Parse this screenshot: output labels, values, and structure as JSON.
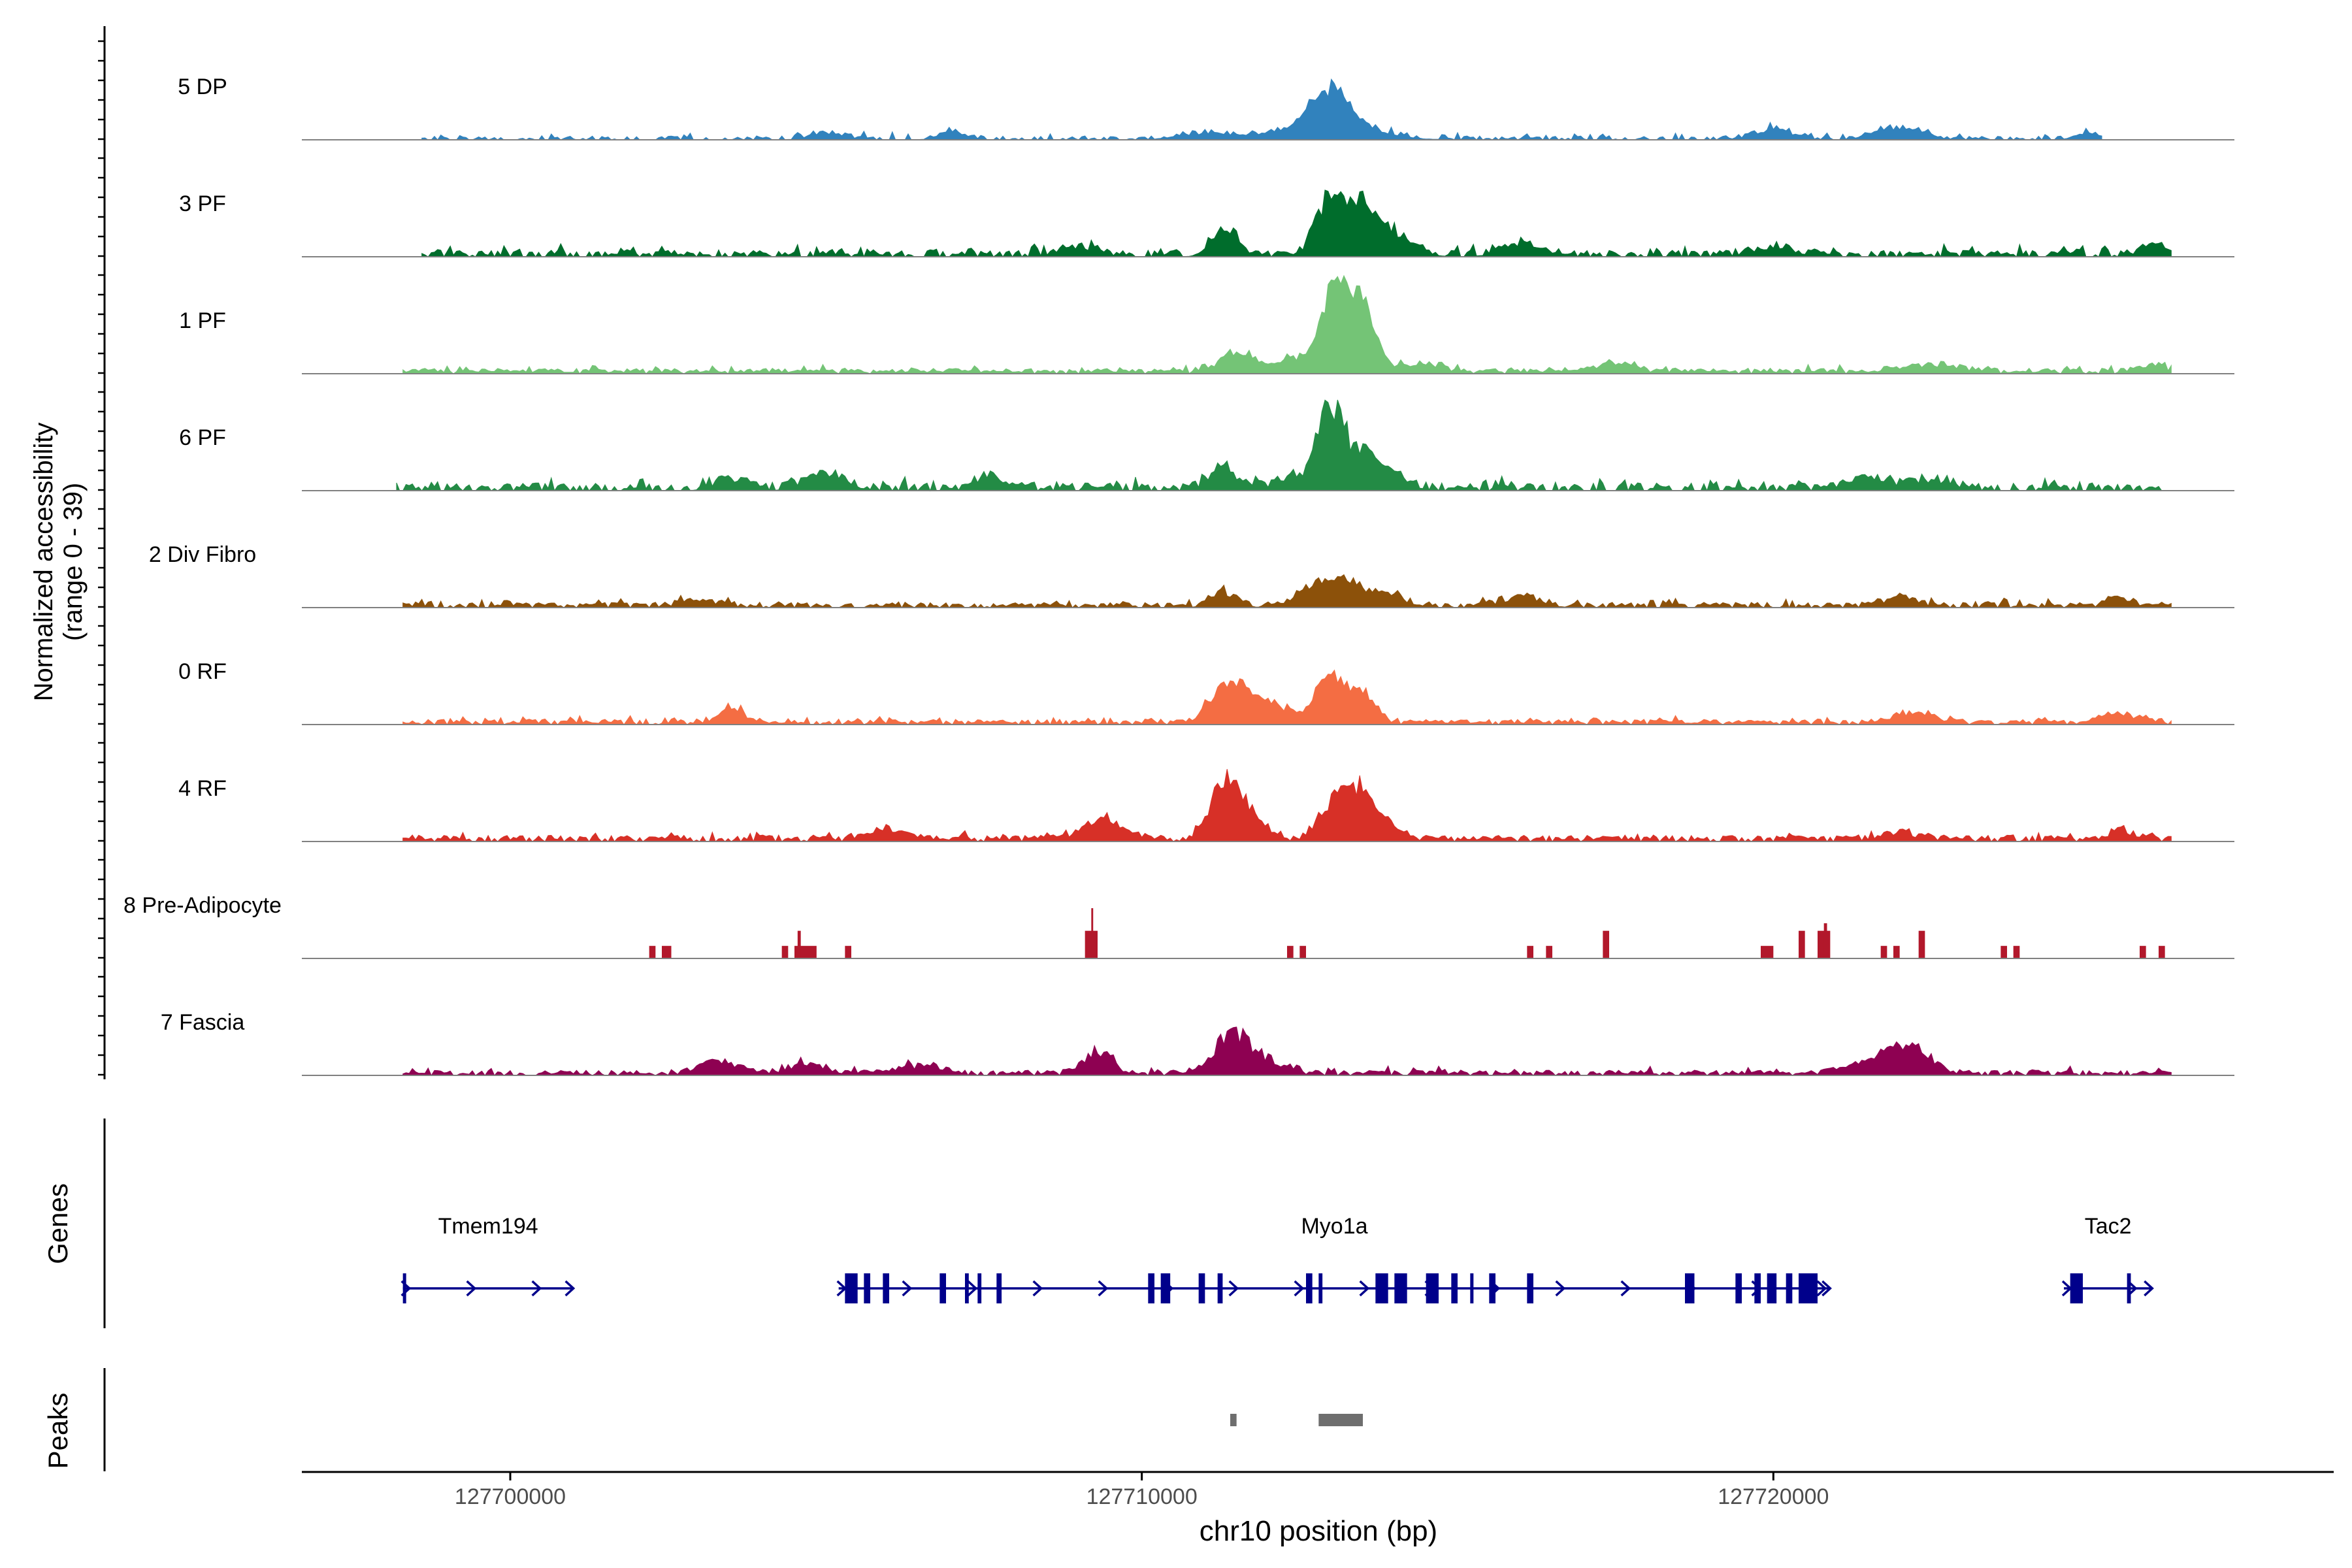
{
  "chart_data": {
    "type": "area",
    "chromosome": "chr10",
    "xlabel": "chr10 position (bp)",
    "xlim": [
      127696700,
      127727300
    ],
    "x_ticks": [
      127700000,
      127710000,
      127720000
    ],
    "x_tick_labels": [
      "127700000",
      "127710000",
      "127720000"
    ],
    "ylabel": "Normalized accessibility",
    "ylabel_sub": "(range 0 - 39)",
    "ylim": [
      0,
      39
    ],
    "series": [
      {
        "name": "5 DP",
        "color": "#3182bd",
        "start": 127698600,
        "end": 127725200,
        "base": 1.2,
        "noise": 2.2,
        "density": 0.55,
        "seed": 11,
        "peaks": [
          [
            127713000,
            14,
            330
          ],
          [
            127712900,
            6,
            700
          ],
          [
            127705000,
            3,
            250
          ],
          [
            127707000,
            3.5,
            200
          ],
          [
            127720000,
            4,
            300
          ],
          [
            127722000,
            5,
            350
          ],
          [
            127725000,
            3,
            200
          ],
          [
            127711000,
            2.5,
            400
          ]
        ]
      },
      {
        "name": "3 PF",
        "color": "#006d2c",
        "start": 127698600,
        "end": 127726300,
        "base": 2.0,
        "noise": 2.8,
        "density": 0.7,
        "seed": 23,
        "peaks": [
          [
            127711300,
            11,
            200
          ],
          [
            127713000,
            24,
            230
          ],
          [
            127713500,
            17,
            220
          ],
          [
            127714000,
            8,
            300
          ],
          [
            127716000,
            5,
            300
          ],
          [
            127720000,
            3.5,
            300
          ],
          [
            127726000,
            4,
            200
          ],
          [
            127709000,
            3,
            300
          ]
        ]
      },
      {
        "name": "1 PF",
        "color": "#74c476",
        "start": 127698300,
        "end": 127726300,
        "base": 1.6,
        "noise": 1.8,
        "density": 0.95,
        "seed": 37,
        "peaks": [
          [
            127713050,
            24,
            200
          ],
          [
            127713450,
            27,
            220
          ],
          [
            127711500,
            8,
            250
          ],
          [
            127712800,
            7,
            500
          ],
          [
            127714500,
            3,
            300
          ],
          [
            127717500,
            3,
            300
          ],
          [
            127726000,
            3,
            200
          ],
          [
            127722500,
            3,
            400
          ]
        ]
      },
      {
        "name": "6 PF",
        "color": "#238b45",
        "start": 127698200,
        "end": 127726300,
        "base": 2.4,
        "noise": 3.0,
        "density": 0.72,
        "seed": 41,
        "peaks": [
          [
            127713000,
            29,
            200
          ],
          [
            127713500,
            12,
            250
          ],
          [
            127711300,
            9,
            200
          ],
          [
            127712600,
            5,
            400
          ],
          [
            127705000,
            6,
            300
          ],
          [
            127707600,
            5,
            200
          ],
          [
            127703500,
            4,
            250
          ],
          [
            127713900,
            4,
            300
          ],
          [
            127721500,
            5,
            300
          ],
          [
            127722500,
            4,
            300
          ]
        ]
      },
      {
        "name": "2 Div Fibro",
        "color": "#8c510a",
        "start": 127698300,
        "end": 127726300,
        "base": 1.6,
        "noise": 2.0,
        "density": 0.74,
        "seed": 53,
        "peaks": [
          [
            127711300,
            6,
            200
          ],
          [
            127712800,
            8,
            300
          ],
          [
            127713300,
            8,
            250
          ],
          [
            127713900,
            4,
            300
          ],
          [
            127716000,
            4,
            300
          ],
          [
            127722000,
            4,
            250
          ],
          [
            127725500,
            3,
            200
          ],
          [
            127703000,
            2.5,
            300
          ]
        ]
      },
      {
        "name": "0 RF",
        "color": "#f46d43",
        "start": 127698300,
        "end": 127726300,
        "base": 1.6,
        "noise": 1.8,
        "density": 0.85,
        "seed": 67,
        "peaks": [
          [
            127711400,
            15,
            280
          ],
          [
            127713000,
            20,
            200
          ],
          [
            127713500,
            11,
            200
          ],
          [
            127712200,
            4,
            300
          ],
          [
            127703500,
            5,
            220
          ],
          [
            127722200,
            4,
            300
          ],
          [
            127725500,
            3,
            300
          ],
          [
            127711900,
            4,
            400
          ]
        ]
      },
      {
        "name": "4 RF",
        "color": "#d73027",
        "start": 127698300,
        "end": 127726300,
        "base": 1.9,
        "noise": 2.0,
        "density": 0.82,
        "seed": 79,
        "peaks": [
          [
            127711300,
            21,
            230
          ],
          [
            127711700,
            9,
            250
          ],
          [
            127713000,
            11,
            220
          ],
          [
            127713400,
            16,
            260
          ],
          [
            127713700,
            6,
            300
          ],
          [
            127709400,
            8,
            300
          ],
          [
            127706000,
            4,
            250
          ],
          [
            127725500,
            4,
            200
          ],
          [
            127722000,
            3,
            300
          ]
        ]
      },
      {
        "name": "8 Pre-Adipocyte",
        "color": "#b2182b",
        "type": "blocks",
        "blocks": [
          [
            127702200,
            127702300,
            5
          ],
          [
            127702400,
            127702550,
            5
          ],
          [
            127704300,
            127704400,
            5
          ],
          [
            127704500,
            127704850,
            5
          ],
          [
            127704550,
            127704600,
            11
          ],
          [
            127705300,
            127705400,
            5
          ],
          [
            127709100,
            127709300,
            11
          ],
          [
            127709200,
            127709230,
            20
          ],
          [
            127712300,
            127712400,
            5
          ],
          [
            127712500,
            127712600,
            5
          ],
          [
            127716100,
            127716200,
            5
          ],
          [
            127716400,
            127716500,
            5
          ],
          [
            127717300,
            127717400,
            11
          ],
          [
            127719800,
            127720000,
            5
          ],
          [
            127720400,
            127720500,
            11
          ],
          [
            127720700,
            127720900,
            11
          ],
          [
            127720800,
            127720850,
            14
          ],
          [
            127721700,
            127721800,
            5
          ],
          [
            127721900,
            127722000,
            5
          ],
          [
            127722300,
            127722400,
            11
          ],
          [
            127723600,
            127723700,
            5
          ],
          [
            127723800,
            127723900,
            5
          ],
          [
            127725800,
            127725900,
            5
          ],
          [
            127726100,
            127726200,
            5
          ]
        ]
      },
      {
        "name": "7 Fascia",
        "color": "#8e0152",
        "start": 127698300,
        "end": 127726300,
        "base": 1.6,
        "noise": 2.0,
        "density": 0.8,
        "seed": 97,
        "peaks": [
          [
            127709300,
            10,
            200
          ],
          [
            127711400,
            14,
            260
          ],
          [
            127711800,
            6,
            350
          ],
          [
            127703300,
            5,
            300
          ],
          [
            127704700,
            4,
            300
          ],
          [
            127721800,
            7,
            450
          ],
          [
            127722200,
            6,
            300
          ],
          [
            127706500,
            3,
            300
          ]
        ]
      }
    ],
    "genes": [
      {
        "name": "Tmem194",
        "start": 127698300,
        "end": 127701000,
        "strand": "+",
        "exons": [
          [
            127698300,
            127698340
          ]
        ]
      },
      {
        "name": "Myo1a",
        "start": 127705200,
        "end": 127720900,
        "strand": "+",
        "exons": [
          [
            127705300,
            127705500
          ],
          [
            127705600,
            127705700
          ],
          [
            127705900,
            127706000
          ],
          [
            127706800,
            127706900
          ],
          [
            127707200,
            127707260
          ],
          [
            127707400,
            127707460
          ],
          [
            127707700,
            127707780
          ],
          [
            127710100,
            127710200
          ],
          [
            127710300,
            127710450
          ],
          [
            127710900,
            127711000
          ],
          [
            127711200,
            127711280
          ],
          [
            127712600,
            127712700
          ],
          [
            127712800,
            127712860
          ],
          [
            127713700,
            127713900
          ],
          [
            127714000,
            127714200
          ],
          [
            127714500,
            127714700
          ],
          [
            127714900,
            127715000
          ],
          [
            127715200,
            127715250
          ],
          [
            127715500,
            127715600
          ],
          [
            127716100,
            127716200
          ],
          [
            127718600,
            127718750
          ],
          [
            127719400,
            127719500
          ],
          [
            127719700,
            127719800
          ],
          [
            127719900,
            127720050
          ],
          [
            127720200,
            127720300
          ],
          [
            127720400,
            127720700
          ]
        ]
      },
      {
        "name": "Tac2",
        "start": 127724600,
        "end": 127726000,
        "strand": "+",
        "exons": [
          [
            127724700,
            127724900
          ],
          [
            127725600,
            127725660
          ]
        ]
      }
    ],
    "peaks_track": [
      [
        127711400,
        127711500
      ],
      [
        127712800,
        127713500
      ]
    ],
    "track_labels": {
      "genes": "Genes",
      "peaks": "Peaks"
    }
  }
}
